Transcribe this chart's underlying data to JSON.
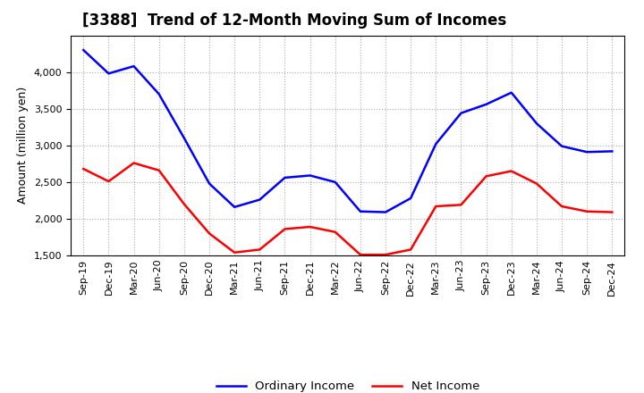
{
  "title": "[3388]  Trend of 12-Month Moving Sum of Incomes",
  "ylabel": "Amount (million yen)",
  "xlabels": [
    "Sep-19",
    "Dec-19",
    "Mar-20",
    "Jun-20",
    "Sep-20",
    "Dec-20",
    "Mar-21",
    "Jun-21",
    "Sep-21",
    "Dec-21",
    "Mar-22",
    "Jun-22",
    "Sep-22",
    "Dec-22",
    "Mar-23",
    "Jun-23",
    "Sep-23",
    "Dec-23",
    "Mar-24",
    "Jun-24",
    "Sep-24",
    "Dec-24"
  ],
  "ordinary_income": [
    4300,
    3980,
    4080,
    3700,
    3100,
    2480,
    2160,
    2260,
    2560,
    2590,
    2500,
    2100,
    2090,
    2280,
    3020,
    3440,
    3560,
    3720,
    3300,
    2990,
    2910,
    2920
  ],
  "net_income": [
    2680,
    2510,
    2760,
    2660,
    2200,
    1800,
    1540,
    1580,
    1860,
    1890,
    1820,
    1510,
    1510,
    1580,
    2170,
    2190,
    2580,
    2650,
    2480,
    2170,
    2100,
    2090
  ],
  "ordinary_color": "#0000ff",
  "net_color": "#ff0000",
  "ylim": [
    1500,
    4500
  ],
  "yticks": [
    1500,
    2000,
    2500,
    3000,
    3500,
    4000
  ],
  "background_color": "#ffffff",
  "grid_color": "#aaaaaa",
  "title_fontsize": 12,
  "axis_label_fontsize": 9,
  "tick_fontsize": 8,
  "legend_ordinary": "Ordinary Income",
  "legend_net": "Net Income",
  "line_width": 1.8
}
